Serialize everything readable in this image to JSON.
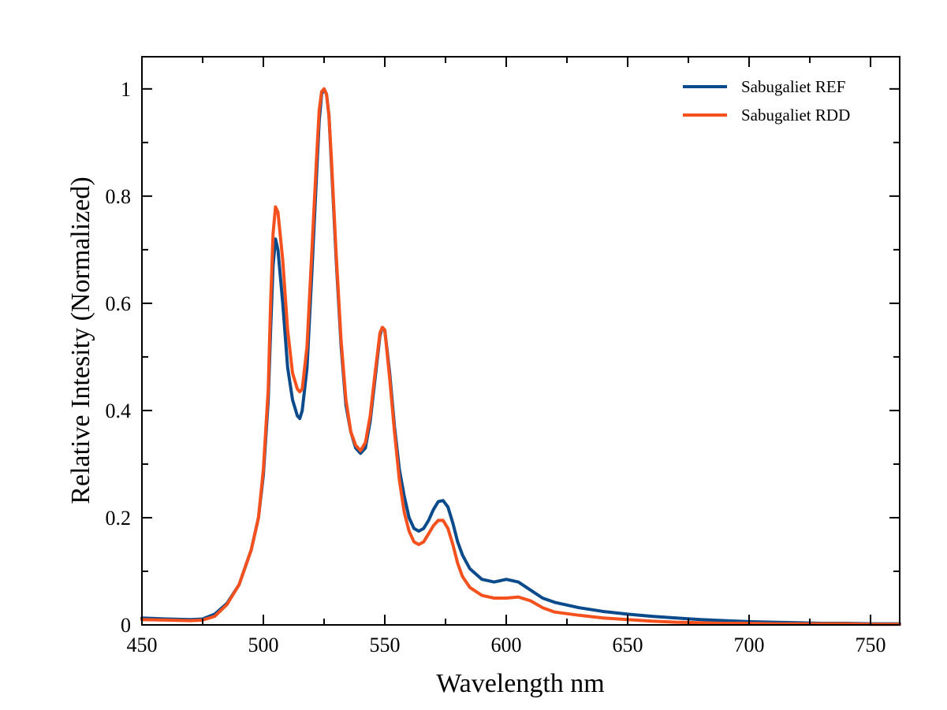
{
  "chart_data": {
    "type": "line",
    "title": "",
    "xlabel": "Wavelength nm",
    "ylabel": "Relative Intesity (Normalized)",
    "xlim": [
      450,
      762
    ],
    "ylim": [
      0,
      1.06
    ],
    "x_ticks": [
      450,
      500,
      550,
      600,
      650,
      700,
      750
    ],
    "x_tick_labels": [
      "450",
      "500",
      "550",
      "600",
      "650",
      "700",
      "750"
    ],
    "y_ticks": [
      0,
      0.2,
      0.4,
      0.6,
      0.8,
      1
    ],
    "y_tick_labels": [
      "0",
      "0.2",
      "0.4",
      "0.6",
      "0.8",
      "1"
    ],
    "grid": false,
    "legend_position": "top-right",
    "series": [
      {
        "name": "Sabugaliet REF",
        "color": "#0b4a8b",
        "x": [
          450,
          460,
          470,
          475,
          480,
          485,
          490,
          495,
          498,
          500,
          502,
          503,
          504,
          505,
          506,
          508,
          510,
          512,
          514,
          515,
          516,
          518,
          520,
          522,
          523,
          524,
          525,
          526,
          527,
          528,
          530,
          532,
          534,
          536,
          538,
          540,
          542,
          544,
          546,
          548,
          549,
          550,
          552,
          554,
          556,
          558,
          560,
          562,
          564,
          566,
          568,
          570,
          572,
          574,
          576,
          578,
          580,
          582,
          585,
          590,
          595,
          600,
          605,
          610,
          615,
          620,
          630,
          640,
          650,
          660,
          670,
          680,
          690,
          700,
          710,
          720,
          730,
          740,
          750,
          762
        ],
        "y": [
          0.013,
          0.011,
          0.01,
          0.011,
          0.02,
          0.04,
          0.075,
          0.14,
          0.2,
          0.28,
          0.42,
          0.55,
          0.67,
          0.72,
          0.7,
          0.6,
          0.48,
          0.42,
          0.39,
          0.385,
          0.4,
          0.48,
          0.66,
          0.85,
          0.94,
          0.99,
          1.0,
          0.99,
          0.95,
          0.86,
          0.68,
          0.52,
          0.41,
          0.36,
          0.33,
          0.32,
          0.33,
          0.38,
          0.46,
          0.54,
          0.555,
          0.55,
          0.47,
          0.37,
          0.29,
          0.24,
          0.2,
          0.18,
          0.175,
          0.18,
          0.195,
          0.215,
          0.23,
          0.232,
          0.22,
          0.19,
          0.155,
          0.13,
          0.105,
          0.085,
          0.08,
          0.085,
          0.08,
          0.065,
          0.05,
          0.042,
          0.032,
          0.025,
          0.02,
          0.016,
          0.013,
          0.01,
          0.008,
          0.006,
          0.005,
          0.004,
          0.003,
          0.003,
          0.002,
          0.002
        ]
      },
      {
        "name": "Sabugaliet RDD",
        "color": "#f4511e",
        "x": [
          450,
          460,
          470,
          475,
          480,
          485,
          490,
          495,
          498,
          500,
          502,
          503,
          504,
          505,
          506,
          508,
          510,
          512,
          514,
          515,
          516,
          518,
          520,
          522,
          523,
          524,
          525,
          526,
          527,
          528,
          530,
          532,
          534,
          536,
          538,
          540,
          542,
          544,
          546,
          548,
          549,
          550,
          552,
          554,
          556,
          558,
          560,
          562,
          564,
          566,
          568,
          570,
          572,
          574,
          576,
          578,
          580,
          582,
          585,
          590,
          595,
          600,
          605,
          610,
          615,
          620,
          630,
          640,
          650,
          660,
          670,
          680,
          690,
          700,
          710,
          720,
          730,
          740,
          750,
          762
        ],
        "y": [
          0.01,
          0.009,
          0.008,
          0.009,
          0.016,
          0.038,
          0.075,
          0.14,
          0.2,
          0.29,
          0.44,
          0.6,
          0.73,
          0.78,
          0.77,
          0.68,
          0.55,
          0.47,
          0.44,
          0.435,
          0.44,
          0.52,
          0.7,
          0.88,
          0.96,
          0.995,
          1.0,
          0.99,
          0.95,
          0.87,
          0.69,
          0.53,
          0.42,
          0.36,
          0.335,
          0.325,
          0.34,
          0.39,
          0.47,
          0.545,
          0.555,
          0.55,
          0.46,
          0.36,
          0.27,
          0.21,
          0.175,
          0.155,
          0.15,
          0.155,
          0.17,
          0.185,
          0.195,
          0.195,
          0.18,
          0.15,
          0.115,
          0.09,
          0.07,
          0.055,
          0.05,
          0.05,
          0.052,
          0.045,
          0.032,
          0.024,
          0.018,
          0.013,
          0.01,
          0.007,
          0.005,
          0.004,
          0.003,
          0.003,
          0.002,
          0.002,
          0.002,
          0.002,
          0.001,
          0.001
        ]
      }
    ]
  }
}
